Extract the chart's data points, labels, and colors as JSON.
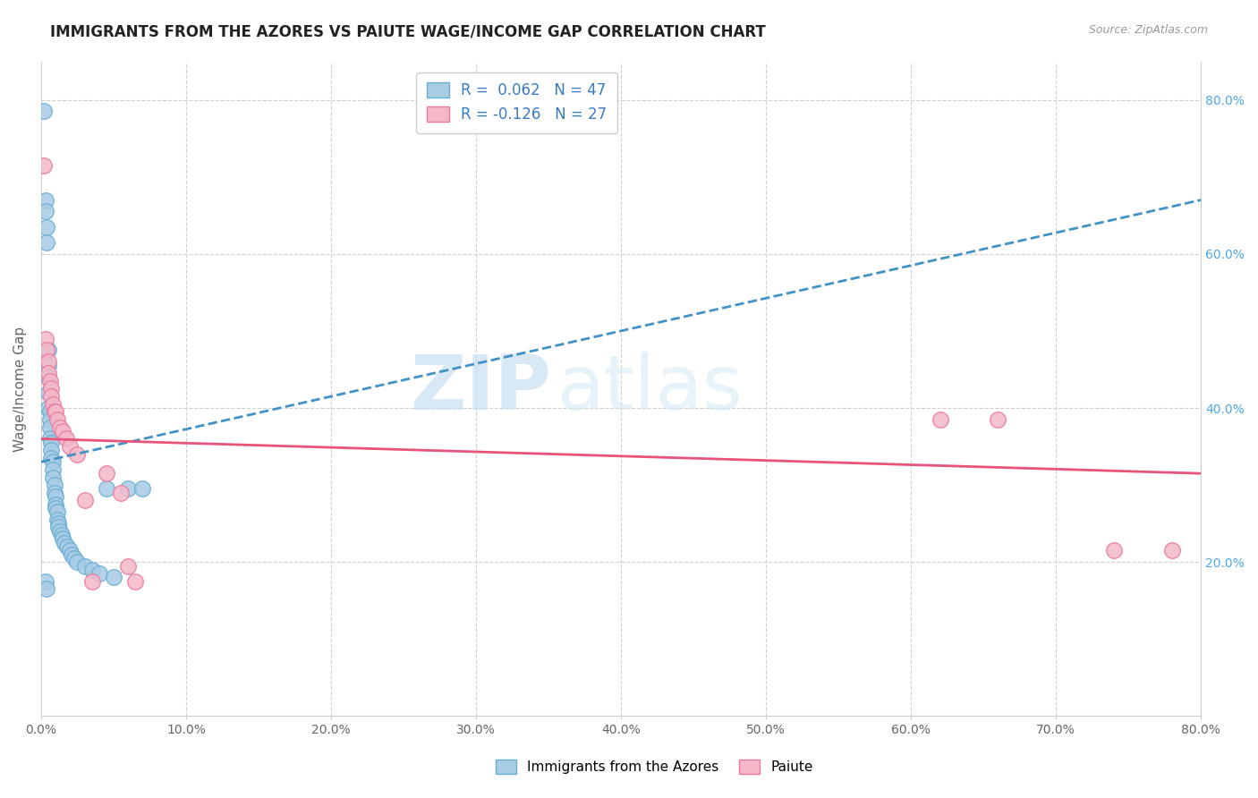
{
  "title": "IMMIGRANTS FROM THE AZORES VS PAIUTE WAGE/INCOME GAP CORRELATION CHART",
  "source": "Source: ZipAtlas.com",
  "ylabel": "Wage/Income Gap",
  "xmin": 0.0,
  "xmax": 0.8,
  "ymin": 0.0,
  "ymax": 0.85,
  "color_blue": "#a8cce4",
  "color_blue_edge": "#6aaed6",
  "color_pink": "#f4b8c8",
  "color_pink_edge": "#e87aa0",
  "color_line_blue": "#4292c6",
  "color_line_pink": "#e8537a",
  "watermark_zip": "ZIP",
  "watermark_atlas": "atlas",
  "blue_line_x0": 0.0,
  "blue_line_y0": 0.33,
  "blue_line_x1": 0.8,
  "blue_line_y1": 0.67,
  "pink_line_x0": 0.0,
  "pink_line_y0": 0.36,
  "pink_line_x1": 0.8,
  "pink_line_y1": 0.315,
  "blue_x": [
    0.002,
    0.003,
    0.003,
    0.004,
    0.004,
    0.005,
    0.005,
    0.005,
    0.005,
    0.005,
    0.006,
    0.006,
    0.006,
    0.006,
    0.007,
    0.007,
    0.007,
    0.008,
    0.008,
    0.008,
    0.009,
    0.009,
    0.01,
    0.01,
    0.01,
    0.011,
    0.011,
    0.012,
    0.012,
    0.013,
    0.014,
    0.015,
    0.016,
    0.018,
    0.02,
    0.021,
    0.023,
    0.025,
    0.03,
    0.035,
    0.04,
    0.045,
    0.05,
    0.06,
    0.07,
    0.003,
    0.004
  ],
  "blue_y": [
    0.785,
    0.67,
    0.655,
    0.635,
    0.615,
    0.475,
    0.455,
    0.44,
    0.42,
    0.4,
    0.395,
    0.385,
    0.375,
    0.36,
    0.355,
    0.345,
    0.335,
    0.33,
    0.32,
    0.31,
    0.3,
    0.29,
    0.285,
    0.275,
    0.27,
    0.265,
    0.255,
    0.25,
    0.245,
    0.24,
    0.235,
    0.23,
    0.225,
    0.22,
    0.215,
    0.21,
    0.205,
    0.2,
    0.195,
    0.19,
    0.185,
    0.295,
    0.18,
    0.295,
    0.295,
    0.175,
    0.165
  ],
  "pink_x": [
    0.002,
    0.003,
    0.004,
    0.005,
    0.005,
    0.006,
    0.007,
    0.007,
    0.008,
    0.009,
    0.01,
    0.011,
    0.013,
    0.015,
    0.017,
    0.02,
    0.025,
    0.03,
    0.035,
    0.045,
    0.055,
    0.06,
    0.065,
    0.62,
    0.66,
    0.74,
    0.78
  ],
  "pink_y": [
    0.715,
    0.49,
    0.475,
    0.46,
    0.445,
    0.435,
    0.425,
    0.415,
    0.405,
    0.395,
    0.395,
    0.385,
    0.375,
    0.37,
    0.36,
    0.35,
    0.34,
    0.28,
    0.175,
    0.315,
    0.29,
    0.195,
    0.175,
    0.385,
    0.385,
    0.215,
    0.215
  ]
}
